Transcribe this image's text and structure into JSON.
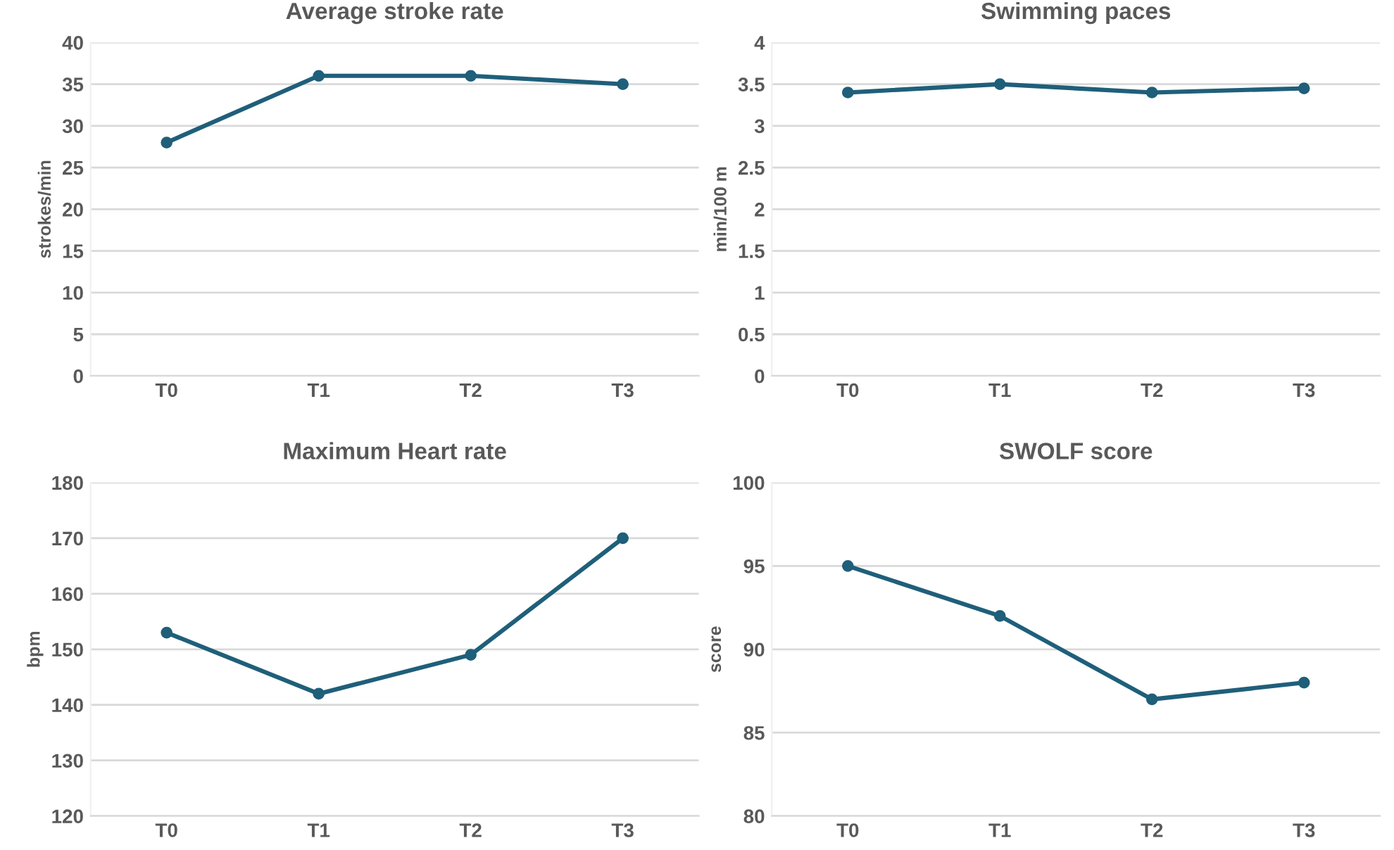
{
  "chart_data": [
    {
      "type": "line",
      "title": "Average stroke rate",
      "ylabel": "strokes/min",
      "categories": [
        "T0",
        "T1",
        "T2",
        "T3"
      ],
      "series": [
        {
          "color": "#1f5f7a",
          "values": [
            28,
            36,
            36,
            35
          ]
        }
      ],
      "ylim": [
        0,
        40
      ],
      "yticks": [
        0,
        5,
        10,
        15,
        20,
        25,
        30,
        35,
        40
      ],
      "grid": "y",
      "marker": "circle"
    },
    {
      "type": "line",
      "title": "Swimming paces",
      "ylabel": "min/100 m",
      "categories": [
        "T0",
        "T1",
        "T2",
        "T3"
      ],
      "series": [
        {
          "color": "#1f5f7a",
          "values": [
            3.4,
            3.5,
            3.4,
            3.45
          ]
        }
      ],
      "ylim": [
        0,
        4
      ],
      "yticks": [
        0,
        0.5,
        1,
        1.5,
        2,
        2.5,
        3,
        3.5,
        4
      ],
      "grid": "y",
      "marker": "circle"
    },
    {
      "type": "line",
      "title": "Maximum Heart rate",
      "ylabel": "bpm",
      "categories": [
        "T0",
        "T1",
        "T2",
        "T3"
      ],
      "series": [
        {
          "color": "#1f5f7a",
          "values": [
            153,
            142,
            149,
            170
          ]
        }
      ],
      "ylim": [
        120,
        180
      ],
      "yticks": [
        120,
        130,
        140,
        150,
        160,
        170,
        180
      ],
      "grid": "y",
      "marker": "circle"
    },
    {
      "type": "line",
      "title": "SWOLF score",
      "ylabel": "score",
      "categories": [
        "T0",
        "T1",
        "T2",
        "T3"
      ],
      "series": [
        {
          "color": "#1f5f7a",
          "values": [
            95,
            92,
            87,
            88
          ]
        }
      ],
      "ylim": [
        80,
        100
      ],
      "yticks": [
        80,
        85,
        90,
        95,
        100
      ],
      "grid": "y",
      "marker": "circle"
    }
  ]
}
